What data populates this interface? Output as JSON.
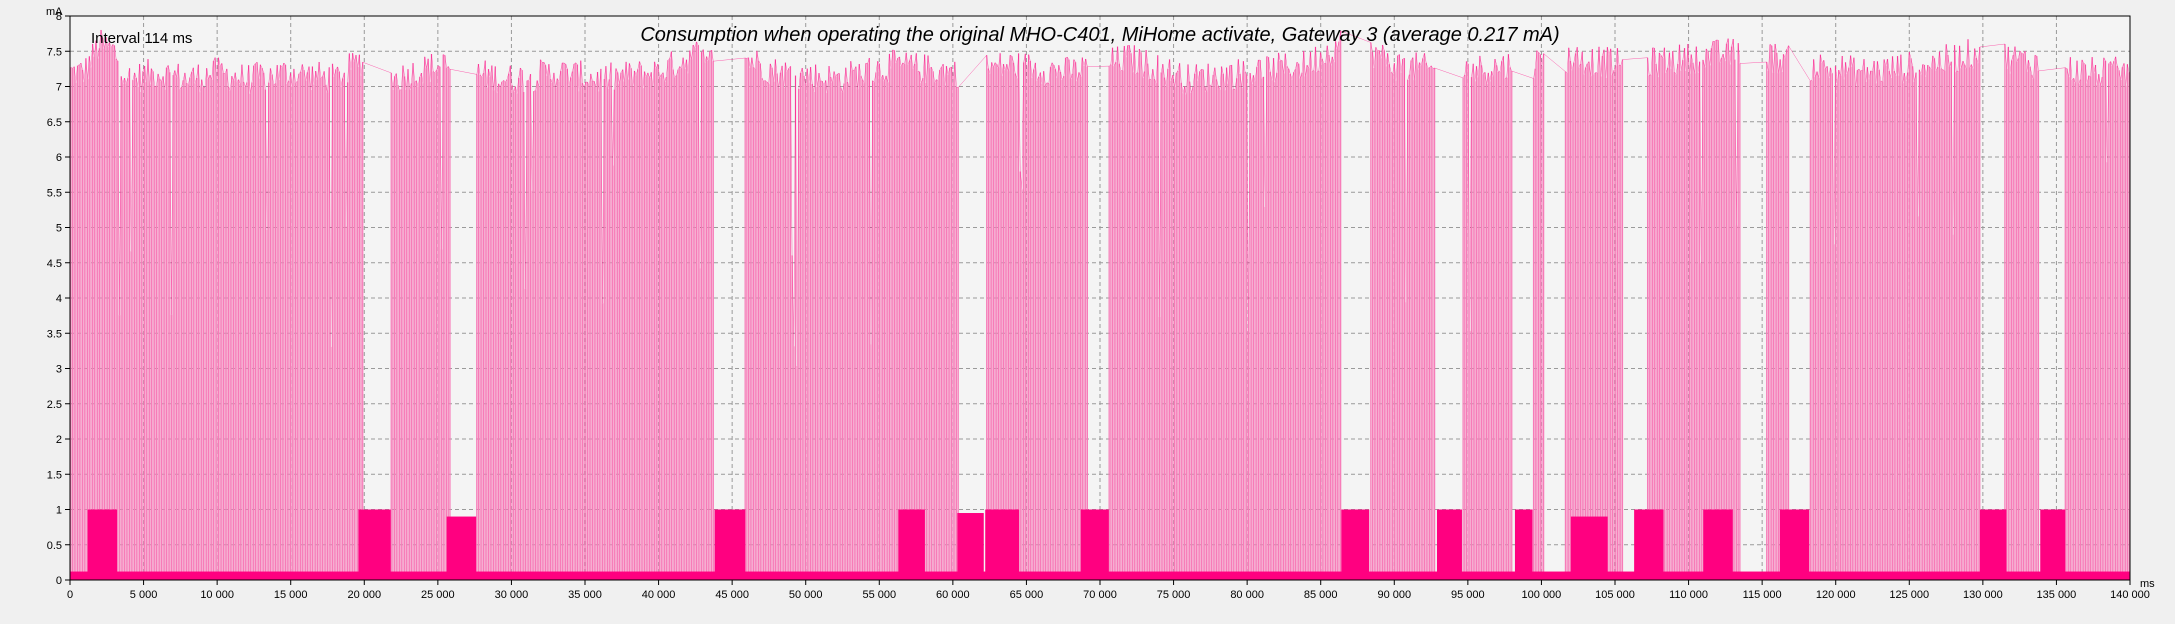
{
  "chart_data": {
    "type": "area",
    "title": "Consumption when operating the original MHO-C401, MiHome activate, Gateway 3 (average 0.217 mA)",
    "annotation": "Interval 114 ms",
    "xlabel": "ms",
    "ylabel": "mA",
    "xlim": [
      0,
      140000
    ],
    "ylim": [
      0,
      8
    ],
    "grid": true,
    "x_ticks": [
      0,
      5000,
      10000,
      15000,
      20000,
      25000,
      30000,
      35000,
      40000,
      45000,
      50000,
      55000,
      60000,
      65000,
      70000,
      75000,
      80000,
      85000,
      90000,
      95000,
      100000,
      105000,
      110000,
      115000,
      120000,
      125000,
      130000,
      135000,
      140000
    ],
    "x_tick_labels": [
      "0",
      "5 000",
      "10 000",
      "15 000",
      "20 000",
      "25 000",
      "30 000",
      "35 000",
      "40 000",
      "45 000",
      "50 000",
      "55 000",
      "60 000",
      "65 000",
      "70 000",
      "75 000",
      "80 000",
      "85 000",
      "90 000",
      "95 000",
      "100 000",
      "105 000",
      "110 000",
      "115 000",
      "120 000",
      "125 000",
      "130 000",
      "135 000",
      "140 000"
    ],
    "y_ticks": [
      0,
      0.5,
      1,
      1.5,
      2,
      2.5,
      3,
      3.5,
      4,
      4.5,
      5,
      5.5,
      6,
      6.5,
      7,
      7.5,
      8
    ],
    "y_tick_labels": [
      "0",
      "0.5",
      "1",
      "1.5",
      "2",
      "2.5",
      "3",
      "3.5",
      "4",
      "4.5",
      "5",
      "5.5",
      "6",
      "6.5",
      "7",
      "7.5",
      "8"
    ],
    "sampling_interval_ms": 114,
    "series": [
      {
        "name": "",
        "color": "#ff0080",
        "fill_color": "#f77bb8",
        "envelope": {
          "x": [
            0,
            1000,
            2000,
            3000,
            4000,
            6000,
            8000,
            10000,
            12000,
            15000,
            18000,
            20000,
            22000,
            25000,
            27000,
            30000,
            33000,
            36000,
            40000,
            44000,
            48000,
            52000,
            56000,
            60000,
            64000,
            68000,
            72000,
            76000,
            80000,
            84000,
            87000,
            90000,
            94000,
            98000,
            102000,
            106000,
            110000,
            114000,
            118000,
            122000,
            126000,
            130000,
            134000,
            137000,
            140000
          ],
          "y": [
            7.2,
            7.2,
            7.6,
            7.5,
            7.1,
            7.2,
            7.1,
            7.2,
            7.1,
            7.2,
            7.1,
            7.4,
            7.1,
            7.3,
            7.2,
            7.1,
            7.2,
            7.1,
            7.2,
            7.6,
            7.2,
            7.1,
            7.3,
            7.2,
            7.3,
            7.2,
            7.4,
            7.1,
            7.2,
            7.3,
            7.7,
            7.3,
            7.2,
            7.3,
            7.4,
            7.3,
            7.4,
            7.5,
            7.3,
            7.2,
            7.3,
            7.5,
            7.3,
            7.2,
            7.2
          ]
        },
        "baseline_mA": 0.02,
        "tall_spike_dropouts": [
          [
            20000,
            21800
          ],
          [
            25900,
            27600
          ],
          [
            43800,
            45800
          ],
          [
            60400,
            62200
          ],
          [
            69200,
            70600
          ],
          [
            86400,
            88400
          ],
          [
            92800,
            94600
          ],
          [
            98000,
            99400
          ],
          [
            100200,
            101600
          ],
          [
            105600,
            107200
          ],
          [
            113600,
            115200
          ],
          [
            116800,
            118200
          ],
          [
            129800,
            131400
          ],
          [
            133800,
            135600
          ]
        ],
        "bursts": [
          {
            "x_start": 1200,
            "x_end": 3200,
            "level_mA": 1.0
          },
          {
            "x_start": 19600,
            "x_end": 21800,
            "level_mA": 1.0
          },
          {
            "x_start": 25600,
            "x_end": 27600,
            "level_mA": 0.9
          },
          {
            "x_start": 43800,
            "x_end": 45900,
            "level_mA": 1.0
          },
          {
            "x_start": 56300,
            "x_end": 58100,
            "level_mA": 1.0
          },
          {
            "x_start": 60300,
            "x_end": 62100,
            "level_mA": 0.95
          },
          {
            "x_start": 62200,
            "x_end": 64500,
            "level_mA": 1.0
          },
          {
            "x_start": 68700,
            "x_end": 70600,
            "level_mA": 1.0
          },
          {
            "x_start": 86400,
            "x_end": 88300,
            "level_mA": 1.0
          },
          {
            "x_start": 92900,
            "x_end": 94600,
            "level_mA": 1.0
          },
          {
            "x_start": 98200,
            "x_end": 99400,
            "level_mA": 1.0
          },
          {
            "x_start": 102000,
            "x_end": 104500,
            "level_mA": 0.9
          },
          {
            "x_start": 106300,
            "x_end": 108300,
            "level_mA": 1.0
          },
          {
            "x_start": 111000,
            "x_end": 113000,
            "level_mA": 1.0
          },
          {
            "x_start": 116200,
            "x_end": 118200,
            "level_mA": 1.0
          },
          {
            "x_start": 129800,
            "x_end": 131600,
            "level_mA": 1.0
          },
          {
            "x_start": 133900,
            "x_end": 135600,
            "level_mA": 1.0
          }
        ]
      }
    ],
    "colors": {
      "background": "#f0f0f0",
      "plot_background": "#f4f4f4",
      "grid": "#9a9a9a",
      "series_line": "#ff0080",
      "series_fill": "#f77bb8",
      "axis": "#000000"
    }
  }
}
